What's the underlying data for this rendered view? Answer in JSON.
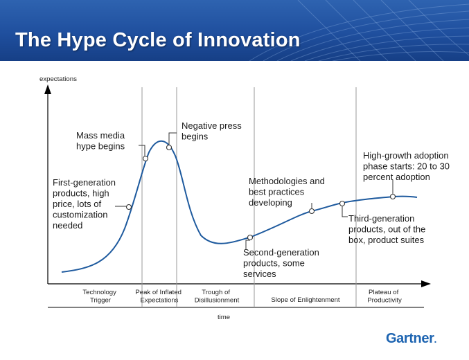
{
  "title": "The Hype Cycle of Innovation",
  "brand": "Gartner",
  "axes": {
    "y_label": "expectations",
    "x_label": "time"
  },
  "phases": [
    {
      "lines": [
        "Technology",
        "Trigger"
      ]
    },
    {
      "lines": [
        "Peak of Inflated",
        "Expectations"
      ]
    },
    {
      "lines": [
        "Trough of",
        "Disillusionment"
      ]
    },
    {
      "lines": [
        "Slope of Enlightenment"
      ]
    },
    {
      "lines": [
        "Plateau of",
        "Productivity"
      ]
    }
  ],
  "annotations": [
    {
      "lines": [
        "First-generation",
        "products, high",
        "price, lots of",
        "customization",
        "needed"
      ]
    },
    {
      "lines": [
        "Mass media",
        "hype begins"
      ]
    },
    {
      "lines": [
        "Negative press",
        "begins"
      ]
    },
    {
      "lines": [
        "Methodologies and",
        "best practices",
        "developing"
      ]
    },
    {
      "lines": [
        "Second-generation",
        "products, some",
        "services"
      ]
    },
    {
      "lines": [
        "Third-generation",
        "products, out of the",
        "box, product suites"
      ]
    },
    {
      "lines": [
        "High-growth adoption",
        "phase starts: 20 to 30",
        "percent adoption"
      ]
    }
  ],
  "colors": {
    "curve": "#1e5a9e",
    "banner": "#1f4f9e",
    "brand": "#1d64b1"
  }
}
